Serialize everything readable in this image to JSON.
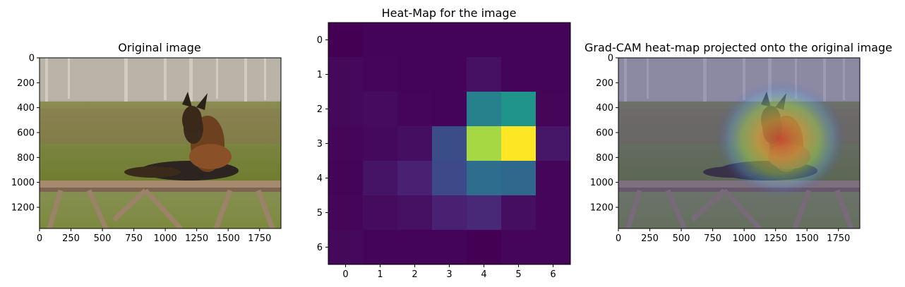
{
  "chart_data": [
    {
      "type": "image",
      "title": "Original image",
      "xticks": [
        0,
        250,
        500,
        750,
        1000,
        1250,
        1500,
        1750
      ],
      "yticks": [
        0,
        200,
        400,
        600,
        800,
        1000,
        1200
      ],
      "xlim": [
        0,
        1920
      ],
      "ylim": [
        1370,
        0
      ],
      "content": "photo: dog lying on a wooden picnic table, park background"
    },
    {
      "type": "heatmap",
      "title": "Heat-Map for the image",
      "colormap": "viridis",
      "xticks": [
        0,
        1,
        2,
        3,
        4,
        5,
        6
      ],
      "yticks": [
        0,
        1,
        2,
        3,
        4,
        5,
        6
      ],
      "values": [
        [
          0.0,
          0.01,
          0.01,
          0.01,
          0.01,
          0.01,
          0.01
        ],
        [
          0.03,
          0.02,
          0.01,
          0.01,
          0.06,
          0.01,
          0.01
        ],
        [
          0.03,
          0.04,
          0.02,
          0.01,
          0.55,
          0.65,
          0.02
        ],
        [
          0.02,
          0.03,
          0.05,
          0.3,
          0.92,
          1.0,
          0.08
        ],
        [
          0.01,
          0.07,
          0.12,
          0.28,
          0.45,
          0.42,
          0.02
        ],
        [
          0.02,
          0.04,
          0.06,
          0.12,
          0.15,
          0.05,
          0.02
        ],
        [
          0.03,
          0.01,
          0.01,
          0.01,
          0.0,
          0.02,
          0.02
        ]
      ]
    },
    {
      "type": "image",
      "title": "Grad-CAM heat-map projected onto the original image",
      "xticks": [
        0,
        250,
        500,
        750,
        1000,
        1250,
        1500,
        1750
      ],
      "yticks": [
        0,
        200,
        400,
        600,
        800,
        1000,
        1200
      ],
      "xlim": [
        0,
        1920
      ],
      "ylim": [
        1370,
        0
      ],
      "content": "photo with jet-colormap overlay centered on dog's chest"
    }
  ]
}
